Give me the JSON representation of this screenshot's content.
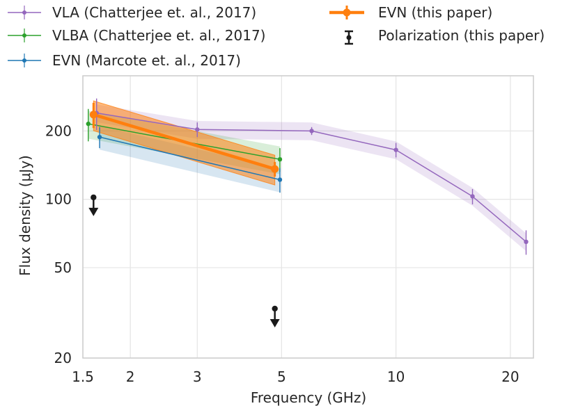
{
  "chart_data": {
    "type": "line",
    "x_scale": "log",
    "y_scale": "log",
    "xlabel": "Frequency (GHz)",
    "ylabel": "Flux density (μJy)",
    "xlim": [
      1.5,
      23
    ],
    "ylim": [
      20,
      350
    ],
    "grid": true,
    "legend_position": "top",
    "x_ticks": [
      {
        "value": 1.5,
        "label": "1.5"
      },
      {
        "value": 2,
        "label": "2"
      },
      {
        "value": 3,
        "label": "3"
      },
      {
        "value": 5,
        "label": "5"
      },
      {
        "value": 10,
        "label": "10"
      },
      {
        "value": 20,
        "label": "20"
      }
    ],
    "y_ticks": [
      {
        "value": 20,
        "label": "20"
      },
      {
        "value": 50,
        "label": "50"
      },
      {
        "value": 100,
        "label": "100"
      },
      {
        "value": 200,
        "label": "200"
      }
    ],
    "colors": {
      "vla": "#9467bd",
      "vlba": "#2ca02c",
      "evn_marcote": "#1f77b4",
      "evn_this": "#ff7f0e",
      "polarization": "#1a1a1a",
      "grid": "#e6e6e6",
      "axes": "#cccccc"
    },
    "series": [
      {
        "key": "vla",
        "name": "VLA (Chatterjee et. al., 2017)",
        "x": [
          1.63,
          3.0,
          6.0,
          10.0,
          15.9,
          22.0
        ],
        "y": [
          240,
          203,
          200,
          165,
          103,
          65
        ],
        "yerr": [
          38,
          15,
          8,
          12,
          8,
          8
        ],
        "band_frac": 0.09
      },
      {
        "key": "vlba",
        "name": "VLBA (Chatterjee et. al., 2017)",
        "x": [
          1.55,
          4.95
        ],
        "y": [
          215,
          150
        ],
        "yerr": [
          35,
          18
        ],
        "band_frac": 0.14
      },
      {
        "key": "evn_marcote",
        "name": "EVN (Marcote et. al., 2017)",
        "x": [
          1.66,
          4.95
        ],
        "y": [
          188,
          122
        ],
        "yerr": [
          20,
          15
        ],
        "band_frac": 0.12
      },
      {
        "key": "evn_this",
        "name": "EVN (this paper)",
        "x": [
          1.6,
          4.8
        ],
        "y": [
          236,
          136
        ],
        "yerr": [
          30,
          10
        ],
        "band_frac": 0.15
      }
    ],
    "polarization": {
      "name": "Polarization (this paper)",
      "points": [
        {
          "x": 1.6,
          "y": 102
        },
        {
          "x": 4.8,
          "y": 33
        }
      ]
    }
  }
}
